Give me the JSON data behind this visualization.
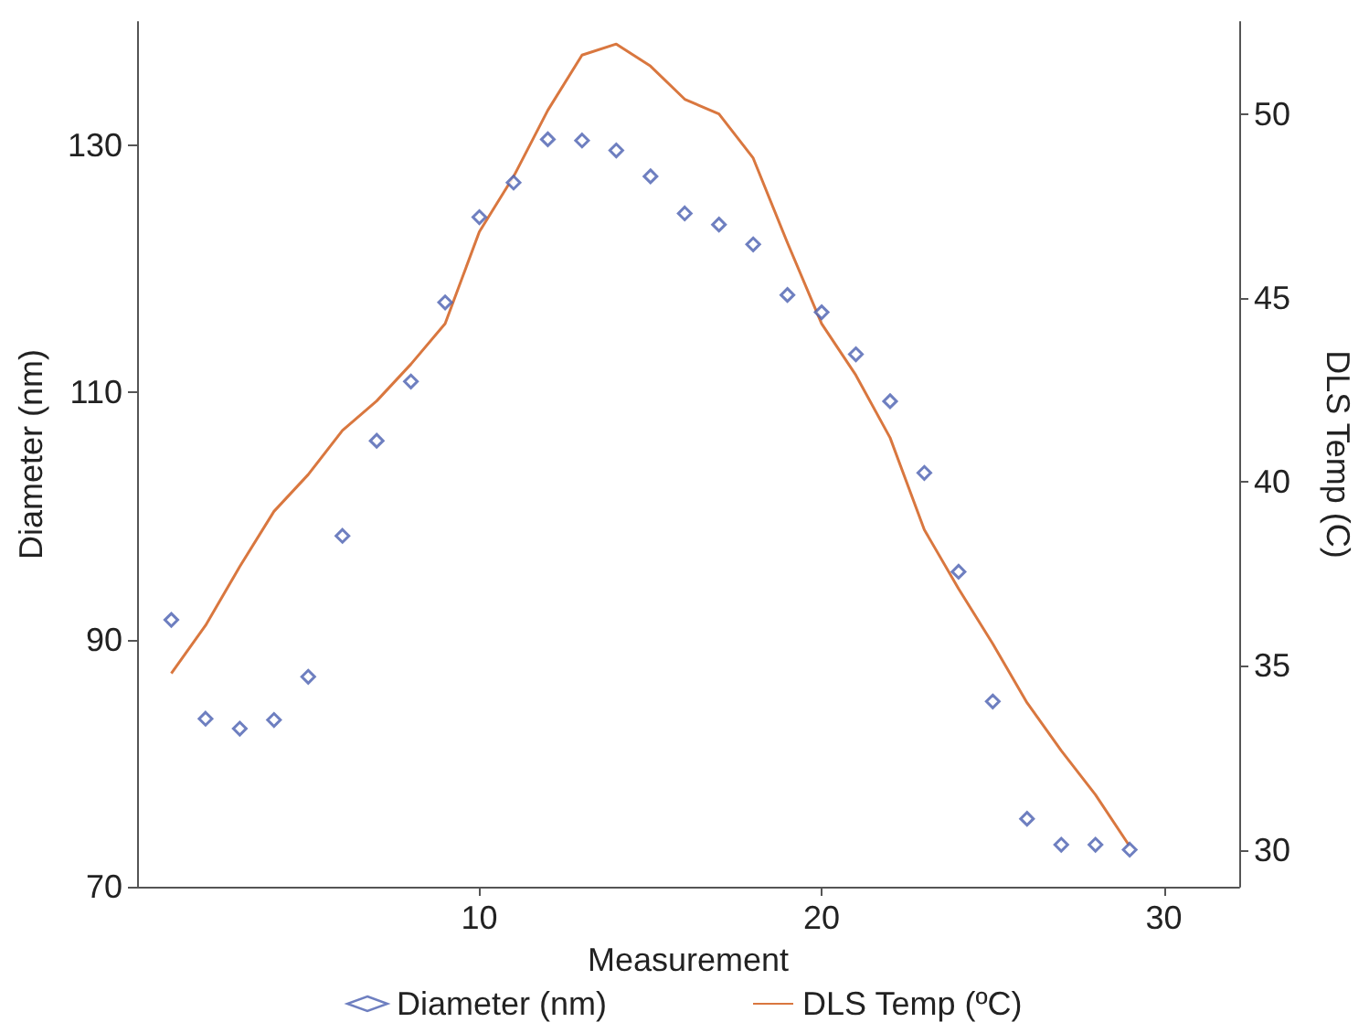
{
  "chart_data": {
    "type": "scatter",
    "xlabel": "Measurement",
    "ylabel": "Diameter (nm)",
    "y2label": "DLS Temp (C)",
    "x": [
      1,
      2,
      3,
      4,
      5,
      6,
      7,
      8,
      9,
      10,
      11,
      12,
      13,
      14,
      15,
      16,
      17,
      18,
      19,
      20,
      21,
      22,
      23,
      24,
      25,
      26,
      27,
      28,
      29
    ],
    "series": [
      {
        "name": "Diameter (nm)",
        "color": "#4a5fb0",
        "marker": "diamond",
        "values": [
          91.6,
          83.6,
          82.8,
          83.5,
          87.0,
          98.4,
          106.1,
          110.9,
          117.3,
          124.2,
          127.0,
          130.5,
          130.4,
          129.6,
          127.5,
          124.5,
          123.6,
          122.0,
          117.9,
          116.5,
          113.1,
          109.3,
          103.5,
          95.5,
          85.0,
          75.5,
          73.4,
          73.4,
          73.0
        ]
      },
      {
        "name": "DLS Temp (ºC)",
        "type": "line",
        "axis": "y2",
        "color": "#d9773f",
        "marker": "none",
        "line_style": "solid",
        "values": [
          34.8,
          36.1,
          37.7,
          39.2,
          40.2,
          41.4,
          42.2,
          43.2,
          44.3,
          46.8,
          48.3,
          50.1,
          51.6,
          51.9,
          51.3,
          50.4,
          50.0,
          48.8,
          46.5,
          44.3,
          42.9,
          41.2,
          38.7,
          37.1,
          35.6,
          34.0,
          32.7,
          31.5,
          30.1
        ]
      }
    ],
    "xlim": [
      0,
      32.2
    ],
    "xticks": [
      10,
      20,
      30
    ],
    "ylim": [
      70,
      140
    ],
    "yticks": [
      70,
      90,
      110,
      130
    ],
    "y2lim": [
      29,
      52.5
    ],
    "y2ticks": [
      30,
      35,
      40,
      45,
      50
    ],
    "grid": false,
    "legend": "bottom"
  }
}
